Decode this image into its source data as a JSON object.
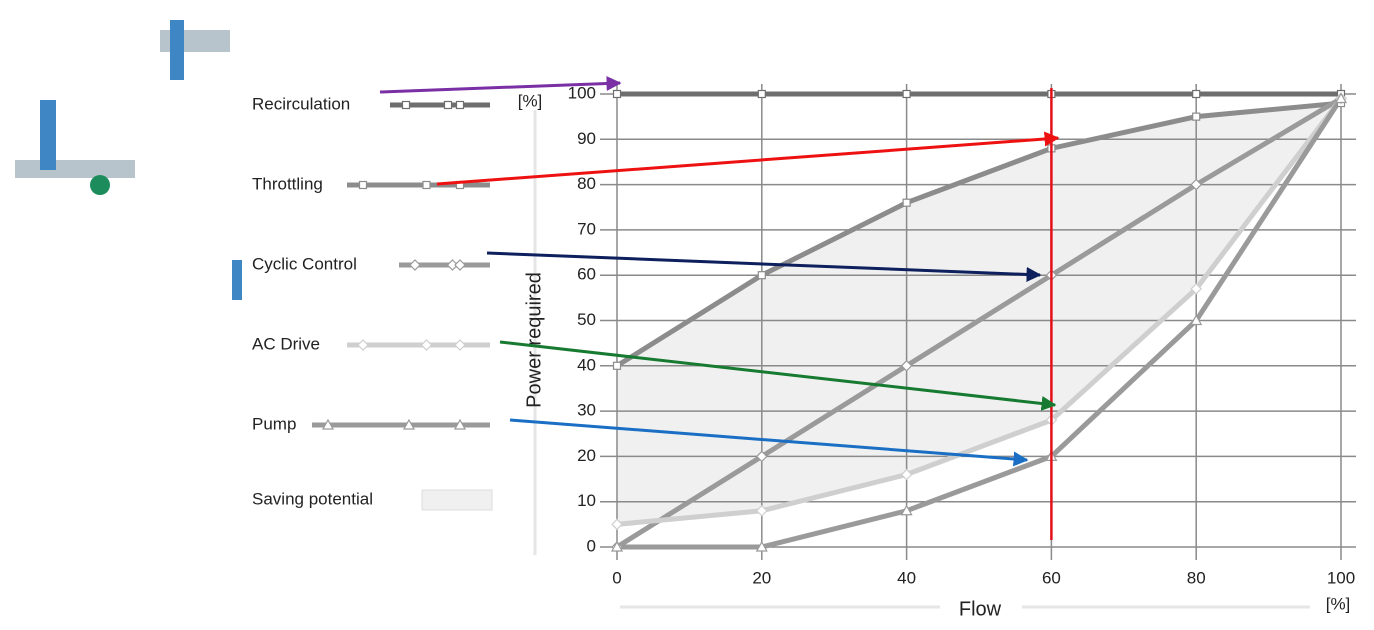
{
  "chart_data": {
    "type": "line",
    "y_label": "Power required",
    "y_unit": "[%]",
    "x_label": "Flow",
    "x_unit": "[%]",
    "x": [
      0,
      20,
      40,
      60,
      80,
      100
    ],
    "series": [
      {
        "name": "Recirculation",
        "color": "#6e6e6e",
        "marker": "square",
        "values": [
          100,
          100,
          100,
          100,
          100,
          100
        ]
      },
      {
        "name": "Throttling",
        "color": "#8c8c8c",
        "marker": "square",
        "values": [
          40,
          60,
          76,
          88,
          95,
          98
        ]
      },
      {
        "name": "Cyclic Control",
        "color": "#9a9a9a",
        "marker": "diamond",
        "values": [
          0,
          20,
          40,
          60,
          80,
          99
        ]
      },
      {
        "name": "AC Drive",
        "color": "#cfcfcf",
        "marker": "diamond",
        "values": [
          5,
          8,
          16,
          28,
          57,
          99
        ]
      },
      {
        "name": "Pump",
        "color": "#9a9a9a",
        "marker": "triangle",
        "values": [
          0,
          0,
          8,
          20,
          50,
          99
        ]
      }
    ],
    "saving_area": {
      "name": "Saving potential",
      "color": "#f0f0f0",
      "between": [
        1,
        3
      ]
    },
    "vline": {
      "x": 60,
      "color": "#e3101a"
    },
    "xlim": [
      0,
      100
    ],
    "xticks": [
      0,
      20,
      40,
      60,
      80,
      100
    ],
    "ylim": [
      0,
      100
    ],
    "yticks": [
      0,
      10,
      20,
      30,
      40,
      50,
      60,
      70,
      80,
      90,
      100
    ],
    "grid": true
  }
}
